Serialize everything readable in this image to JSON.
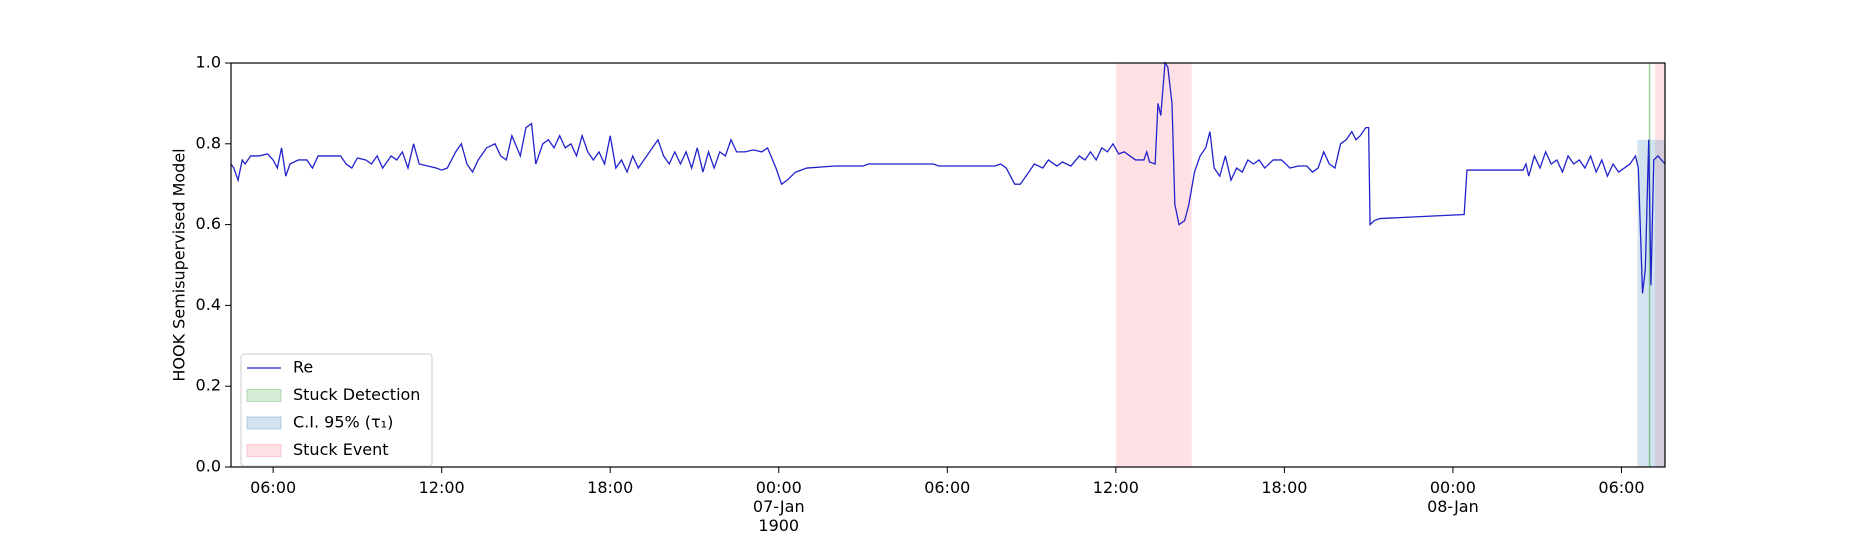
{
  "chart_data": {
    "type": "line",
    "y_label": "HOOK Semisupervised Model",
    "xlim": [
      4.5,
      55.55
    ],
    "ylim": [
      0,
      1
    ],
    "xticks": [
      {
        "value": 6,
        "label": "06:00"
      },
      {
        "value": 12,
        "label": "12:00"
      },
      {
        "value": 18,
        "label": "18:00"
      },
      {
        "value": 24,
        "label": "00:00\n07-Jan\n1900"
      },
      {
        "value": 30,
        "label": "06:00"
      },
      {
        "value": 36,
        "label": "12:00"
      },
      {
        "value": 42,
        "label": "18:00"
      },
      {
        "value": 48,
        "label": "00:00\n08-Jan"
      },
      {
        "value": 54,
        "label": "06:00"
      }
    ],
    "yticks": [
      {
        "value": 0,
        "label": "0.0"
      },
      0.2,
      0.4,
      0.6,
      0.8,
      {
        "value": 1,
        "label": "1.0"
      }
    ],
    "legend": "lower left",
    "x": [
      4.5,
      4.6,
      4.75,
      4.9,
      5.0,
      5.2,
      5.5,
      5.8,
      6.0,
      6.15,
      6.3,
      6.45,
      6.6,
      6.9,
      7.2,
      7.4,
      7.6,
      8.0,
      8.4,
      8.6,
      8.8,
      9.0,
      9.3,
      9.5,
      9.7,
      9.9,
      10.2,
      10.4,
      10.6,
      10.8,
      11.0,
      11.2,
      11.5,
      11.8,
      12.0,
      12.2,
      12.5,
      12.7,
      12.9,
      13.1,
      13.3,
      13.6,
      13.9,
      14.1,
      14.3,
      14.5,
      14.8,
      15.0,
      15.2,
      15.35,
      15.6,
      15.8,
      16.0,
      16.2,
      16.4,
      16.6,
      16.8,
      17.0,
      17.2,
      17.4,
      17.6,
      17.8,
      18.0,
      18.2,
      18.4,
      18.6,
      18.8,
      19.0,
      19.2,
      19.5,
      19.7,
      19.9,
      20.1,
      20.3,
      20.5,
      20.7,
      20.9,
      21.1,
      21.3,
      21.5,
      21.7,
      21.9,
      22.1,
      22.3,
      22.5,
      22.8,
      23.1,
      23.4,
      23.6,
      23.9,
      24.1,
      24.3,
      24.6,
      25.0,
      26.0,
      27.0,
      27.2,
      29.5,
      29.7,
      31.7,
      31.9,
      32.1,
      32.4,
      32.6,
      32.9,
      33.1,
      33.4,
      33.6,
      33.9,
      34.1,
      34.4,
      34.7,
      34.9,
      35.1,
      35.3,
      35.5,
      35.7,
      35.9,
      36.1,
      36.3,
      36.5,
      36.7,
      37.0,
      37.1,
      37.2,
      37.4,
      37.5,
      37.6,
      37.75,
      37.85,
      38.0,
      38.1,
      38.25,
      38.45,
      38.6,
      38.8,
      39.0,
      39.2,
      39.35,
      39.5,
      39.7,
      39.9,
      40.1,
      40.3,
      40.5,
      40.7,
      40.9,
      41.1,
      41.3,
      41.6,
      41.9,
      42.2,
      42.5,
      42.8,
      43.0,
      43.2,
      43.4,
      43.6,
      43.8,
      44.0,
      44.2,
      44.4,
      44.55,
      44.7,
      44.9,
      45.0,
      45.05,
      45.2,
      45.4,
      48.4,
      48.5,
      50.5,
      50.6,
      50.7,
      50.9,
      51.1,
      51.3,
      51.5,
      51.7,
      51.9,
      52.1,
      52.3,
      52.5,
      52.7,
      52.9,
      53.1,
      53.3,
      53.5,
      53.7,
      53.9,
      54.1,
      54.3,
      54.5,
      54.6,
      54.75,
      54.85,
      54.97,
      55.05,
      55.15,
      55.3,
      55.55
    ],
    "series": [
      {
        "name": "Re",
        "color": "#2222cc",
        "values": [
          0.75,
          0.74,
          0.71,
          0.76,
          0.75,
          0.77,
          0.77,
          0.775,
          0.76,
          0.74,
          0.79,
          0.72,
          0.75,
          0.76,
          0.76,
          0.74,
          0.77,
          0.77,
          0.77,
          0.75,
          0.74,
          0.765,
          0.76,
          0.75,
          0.77,
          0.74,
          0.77,
          0.76,
          0.78,
          0.74,
          0.8,
          0.75,
          0.745,
          0.74,
          0.735,
          0.74,
          0.78,
          0.8,
          0.75,
          0.73,
          0.76,
          0.79,
          0.8,
          0.77,
          0.76,
          0.82,
          0.77,
          0.84,
          0.85,
          0.75,
          0.8,
          0.81,
          0.79,
          0.82,
          0.79,
          0.8,
          0.77,
          0.82,
          0.78,
          0.76,
          0.78,
          0.75,
          0.82,
          0.74,
          0.76,
          0.73,
          0.77,
          0.74,
          0.76,
          0.79,
          0.81,
          0.77,
          0.75,
          0.78,
          0.75,
          0.78,
          0.74,
          0.79,
          0.73,
          0.78,
          0.74,
          0.78,
          0.77,
          0.81,
          0.78,
          0.78,
          0.785,
          0.78,
          0.79,
          0.74,
          0.7,
          0.71,
          0.73,
          0.74,
          0.745,
          0.745,
          0.75,
          0.75,
          0.745,
          0.745,
          0.75,
          0.74,
          0.7,
          0.7,
          0.73,
          0.75,
          0.74,
          0.76,
          0.745,
          0.755,
          0.745,
          0.77,
          0.76,
          0.78,
          0.76,
          0.79,
          0.78,
          0.8,
          0.775,
          0.78,
          0.77,
          0.76,
          0.76,
          0.78,
          0.755,
          0.75,
          0.9,
          0.87,
          1.0,
          0.99,
          0.9,
          0.65,
          0.6,
          0.61,
          0.65,
          0.73,
          0.77,
          0.79,
          0.83,
          0.74,
          0.72,
          0.77,
          0.71,
          0.74,
          0.73,
          0.76,
          0.75,
          0.76,
          0.74,
          0.76,
          0.76,
          0.74,
          0.745,
          0.745,
          0.73,
          0.74,
          0.78,
          0.75,
          0.74,
          0.8,
          0.81,
          0.83,
          0.81,
          0.82,
          0.84,
          0.84,
          0.6,
          0.61,
          0.615,
          0.625,
          0.735,
          0.735,
          0.75,
          0.72,
          0.77,
          0.74,
          0.78,
          0.75,
          0.76,
          0.73,
          0.77,
          0.75,
          0.76,
          0.74,
          0.77,
          0.73,
          0.76,
          0.72,
          0.75,
          0.73,
          0.74,
          0.75,
          0.77,
          0.74,
          0.43,
          0.49,
          0.81,
          0.45,
          0.76,
          0.77,
          0.75
        ]
      }
    ],
    "stuck_detection": {
      "name": "Stuck Detection",
      "color": "#2ca02c",
      "x": 55.0
    },
    "ci": {
      "name": "C.I. 95% (τ₁)",
      "color": "#1f77b4",
      "x": [
        54.57,
        55.55
      ],
      "ymax": 0.81
    },
    "stuck_event": {
      "name": "Stuck Event",
      "color": "#ff6b7f",
      "spans": [
        [
          36,
          38.7
        ],
        [
          55.2,
          55.55
        ]
      ]
    }
  }
}
